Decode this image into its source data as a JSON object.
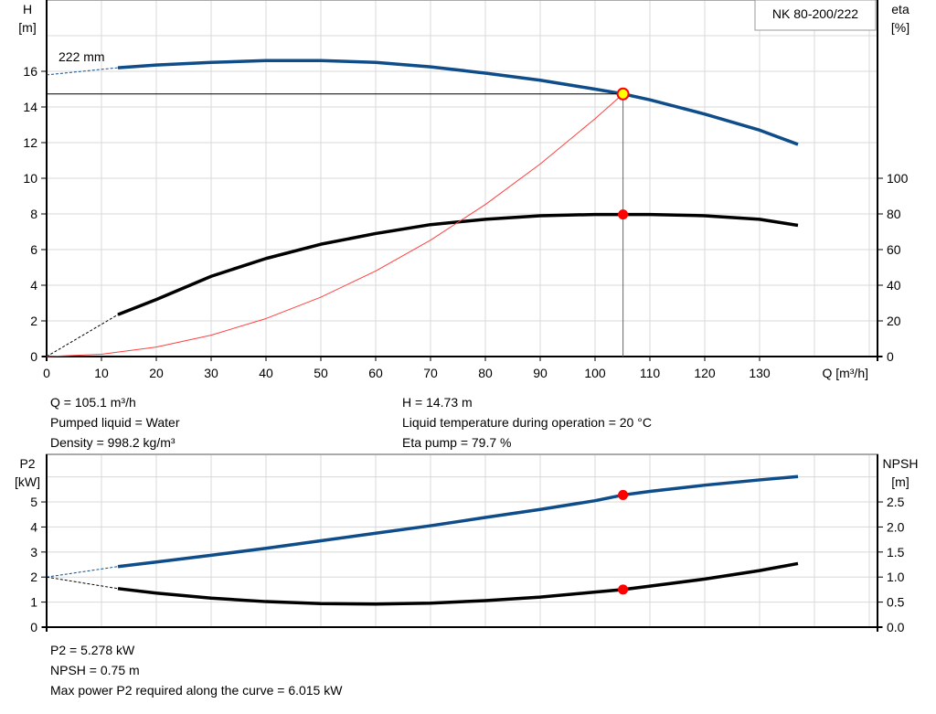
{
  "chart_data": [
    {
      "type": "line",
      "title": "NK 80-200/222",
      "xlabel": "Q [m³/h]",
      "xlim": [
        0,
        150
      ],
      "xticks": [
        0,
        10,
        20,
        30,
        40,
        50,
        60,
        70,
        80,
        90,
        100,
        110,
        120,
        130
      ],
      "y_left": {
        "label_line1": "H",
        "label_line2": "[m]",
        "ylim": [
          0,
          20
        ],
        "ticks": [
          0,
          2,
          4,
          6,
          8,
          10,
          12,
          14,
          16
        ]
      },
      "y_right": {
        "label_line1": "eta",
        "label_line2": "[%]",
        "ylim": [
          0,
          200
        ],
        "ticks": [
          0,
          20,
          40,
          60,
          80,
          100
        ]
      },
      "grid": true,
      "impeller_label": "222 mm",
      "series": [
        {
          "key": "H",
          "axis": "left",
          "color": "#0e4d8a",
          "x": [
            13,
            20,
            30,
            40,
            50,
            60,
            70,
            80,
            90,
            100,
            105.1,
            110,
            120,
            130,
            137
          ],
          "y": [
            16.2,
            16.35,
            16.5,
            16.6,
            16.6,
            16.5,
            16.25,
            15.9,
            15.5,
            15.0,
            14.73,
            14.4,
            13.6,
            12.7,
            11.9
          ],
          "extrapolated_start": [
            0,
            15.8
          ]
        },
        {
          "key": "eta",
          "axis": "right",
          "color": "#000000",
          "x": [
            13,
            20,
            30,
            40,
            50,
            60,
            70,
            80,
            90,
            100,
            105.1,
            110,
            120,
            130,
            137
          ],
          "y": [
            23.5,
            32,
            45,
            55,
            63,
            69,
            74,
            77,
            79,
            79.7,
            79.7,
            79.7,
            79,
            77,
            73.6
          ],
          "extrapolated_start": [
            0,
            0
          ]
        },
        {
          "key": "system",
          "axis": "left",
          "color": "#ff4040",
          "x": [
            0,
            10,
            20,
            30,
            40,
            50,
            60,
            70,
            80,
            90,
            100,
            105.1
          ],
          "y": [
            0,
            0.13,
            0.53,
            1.2,
            2.13,
            3.33,
            4.8,
            6.53,
            8.53,
            10.8,
            13.34,
            14.73
          ]
        }
      ],
      "duty_point": {
        "Q": 105.1,
        "H": 14.73,
        "eta": 79.7
      }
    },
    {
      "type": "line",
      "xlim": [
        0,
        150
      ],
      "y_left": {
        "label_line1": "P2",
        "label_line2": "[kW]",
        "ylim": [
          0,
          6.9
        ],
        "ticks": [
          0,
          1,
          2,
          3,
          4,
          5
        ]
      },
      "y_right": {
        "label_line1": "NPSH",
        "label_line2": "[m]",
        "ylim": [
          0,
          3.45
        ],
        "ticks": [
          "0.0",
          "0.5",
          "1.0",
          "1.5",
          "2.0",
          "2.5"
        ]
      },
      "grid": true,
      "series": [
        {
          "key": "P2",
          "axis": "left",
          "color": "#0e4d8a",
          "x": [
            13,
            20,
            30,
            40,
            50,
            60,
            70,
            80,
            90,
            100,
            105.1,
            110,
            120,
            130,
            137
          ],
          "y": [
            2.42,
            2.6,
            2.87,
            3.15,
            3.45,
            3.75,
            4.05,
            4.38,
            4.7,
            5.05,
            5.278,
            5.42,
            5.67,
            5.88,
            6.015
          ],
          "extrapolated_start": [
            0,
            2.0
          ]
        },
        {
          "key": "NPSH",
          "axis": "right",
          "color": "#000000",
          "x": [
            13,
            20,
            30,
            40,
            50,
            60,
            70,
            80,
            90,
            100,
            105.1,
            110,
            120,
            130,
            137
          ],
          "y": [
            0.77,
            0.68,
            0.58,
            0.51,
            0.47,
            0.46,
            0.48,
            0.53,
            0.6,
            0.7,
            0.75,
            0.82,
            0.96,
            1.13,
            1.27
          ],
          "extrapolated_start": [
            0,
            1.0
          ]
        }
      ],
      "duty_point": {
        "Q": 105.1,
        "P2": 5.278,
        "NPSH": 0.75
      }
    }
  ],
  "info_top": {
    "q": "Q = 105.1 m³/h",
    "liquid": "Pumped liquid = Water",
    "density": "Density = 998.2 kg/m³",
    "h": "H = 14.73 m",
    "temp": "Liquid temperature during operation = 20 °C",
    "eta": "Eta pump = 79.7 %"
  },
  "info_bottom": {
    "p2": "P2 = 5.278 kW",
    "npsh": "NPSH = 0.75 m",
    "maxp2": "Max power P2 required along the curve = 6.015 kW"
  }
}
